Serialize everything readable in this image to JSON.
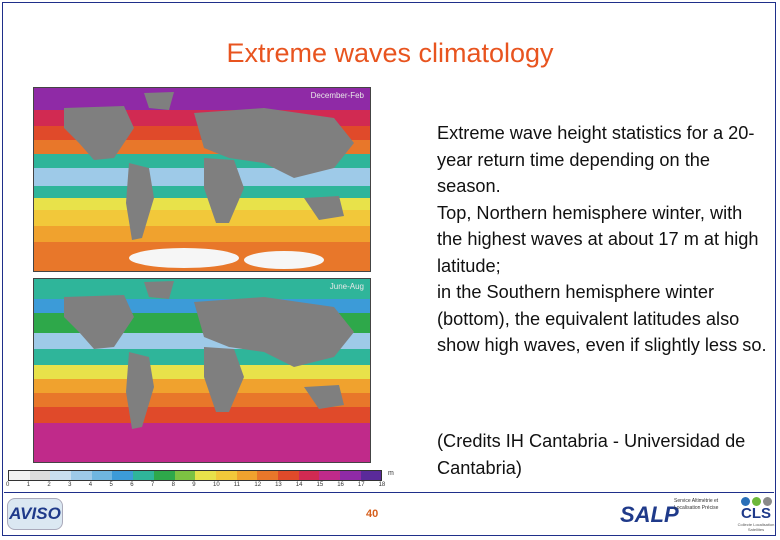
{
  "slide": {
    "title": "Extreme waves climatology",
    "description": [
      "Extreme wave height statistics for a 20-year return time depending on the season.",
      "Top, Northern hemisphere winter, with the highest waves at about 17 m at high latitude;",
      "in the Southern hemisphere winter (bottom), the equivalent latitudes also show high waves, even if slightly less so."
    ],
    "credits": "(Credits IH Cantabria - Universidad de Cantabria)",
    "page_number": "40"
  },
  "maps": {
    "top_label": "December-Feb",
    "bottom_label": "June-Aug"
  },
  "legend": {
    "unit": "m",
    "ticks": [
      "0",
      "1",
      "2",
      "3",
      "4",
      "5",
      "6",
      "7",
      "8",
      "9",
      "10",
      "11",
      "12",
      "13",
      "14",
      "15",
      "16",
      "17",
      "18"
    ],
    "colors": [
      "#f2f2f2",
      "#dcdcdc",
      "#c8dff0",
      "#9ecae8",
      "#6fb6e0",
      "#3c9bd8",
      "#2fb59a",
      "#2ea84a",
      "#7cc242",
      "#e8e24a",
      "#f2c83a",
      "#f0a22e",
      "#e8772a",
      "#e04a2a",
      "#d12a52",
      "#c02a8a",
      "#8f2aa6",
      "#5a2a9a"
    ]
  },
  "logos": {
    "aviso": "AVISO",
    "salp": "SALP",
    "salp_sub": "Service Altimétrie et Localisation Précise",
    "cls": "CLS",
    "cls_sub": "Collecte Localisation Satellites"
  },
  "colors": {
    "title": "#e8541f",
    "border": "#1f2f8a",
    "land": "#7f7f7f",
    "page_number": "#d65f1c"
  }
}
